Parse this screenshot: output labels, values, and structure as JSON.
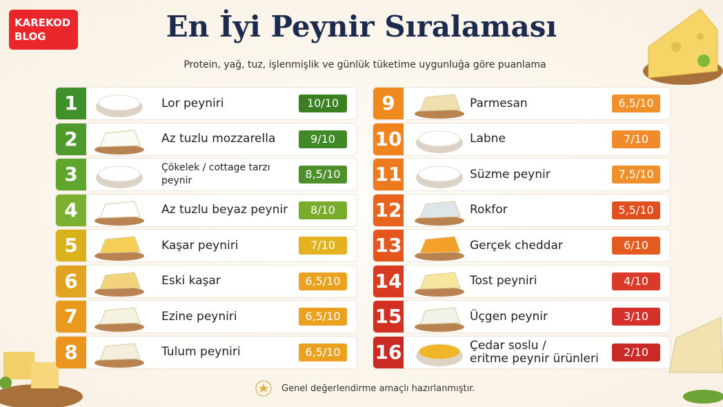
{
  "brand": "KAREKOD\nBLOG",
  "title": "En İyi Peynir Sıralaması",
  "subtitle": "Protein, yağ, tuz, işlenmişlik ve günlük tüketime uygunluğa göre puanlama",
  "items": [
    {
      "rank": "1",
      "name": "Lor peyniri",
      "score": "10/10"
    },
    {
      "rank": "2",
      "name": "Az tuzlu mozzarella",
      "score": "9/10"
    },
    {
      "rank": "3",
      "name": "Çökelek / cottage tarzı peynir",
      "score": "8,5/10"
    },
    {
      "rank": "4",
      "name": "Az tuzlu beyaz peynir",
      "score": "8/10"
    },
    {
      "rank": "5",
      "name": "Kaşar peyniri",
      "score": "7/10"
    },
    {
      "rank": "6",
      "name": "Eski kaşar",
      "score": "6,5/10"
    },
    {
      "rank": "7",
      "name": "Ezine peyniri",
      "score": "6,5/10"
    },
    {
      "rank": "8",
      "name": "Tulum peyniri",
      "score": "6,5/10"
    },
    {
      "rank": "9",
      "name": "Parmesan",
      "score": "6,5/10"
    },
    {
      "rank": "10",
      "name": "Labne",
      "score": "7/10"
    },
    {
      "rank": "11",
      "name": "Süzme peynir",
      "score": "7,5/10"
    },
    {
      "rank": "12",
      "name": "Rokfor",
      "score": "5,5/10"
    },
    {
      "rank": "13",
      "name": "Gerçek cheddar",
      "score": "6/10"
    },
    {
      "rank": "14",
      "name": "Tost peyniri",
      "score": "4/10"
    },
    {
      "rank": "15",
      "name": "Üçgen peynir",
      "score": "3/10"
    },
    {
      "rank": "16",
      "name": "Çedar soslu /\neritme peynir ürünleri",
      "score": "2/10"
    }
  ],
  "footer": "Genel değerlendirme amaçlı hazırlanmıştır."
}
